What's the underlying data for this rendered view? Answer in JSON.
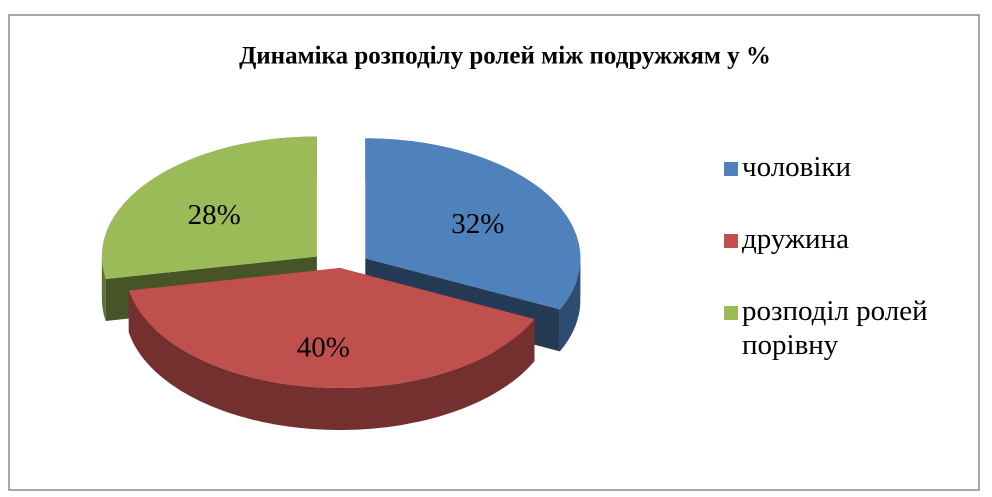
{
  "chart_data": {
    "type": "pie",
    "title": "Динаміка розподілу ролей між подружжям у %",
    "categories": [
      "чоловіки",
      "дружина",
      "розподіл ролей порівну"
    ],
    "values": [
      32,
      40,
      28
    ],
    "value_labels": [
      "32%",
      "40%",
      "28%"
    ],
    "colors": [
      "#4f81bd",
      "#c0504d",
      "#9bbb59"
    ],
    "legend": "right"
  }
}
